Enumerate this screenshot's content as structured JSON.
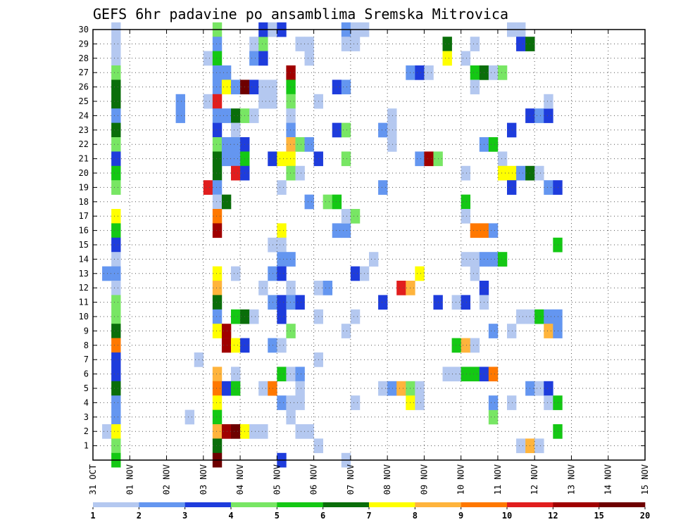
{
  "chart_data": {
    "type": "heatmap",
    "title": "GEFS 6hr padavine po ansamblima Sremska Mitrovica",
    "xlabel": "",
    "ylabel": "",
    "x_tick_labels": [
      "31 OCT",
      "01 NOV",
      "02 NOV",
      "03 NOV",
      "04 NOV",
      "05 NOV",
      "06 NOV",
      "07 NOV",
      "08 NOV",
      "09 NOV",
      "10 NOV",
      "11 NOV",
      "12 NOV",
      "13 NOV",
      "14 NOV",
      "15 NOV"
    ],
    "y_tick_labels": [
      "1",
      "2",
      "3",
      "4",
      "5",
      "6",
      "7",
      "8",
      "9",
      "10",
      "11",
      "12",
      "13",
      "14",
      "15",
      "16",
      "17",
      "18",
      "19",
      "20",
      "21",
      "22",
      "23",
      "24",
      "25",
      "26",
      "27",
      "28",
      "29",
      "30"
    ],
    "ylim": [
      0,
      30
    ],
    "x_steps_per_day": 4,
    "colorbar": {
      "levels": [
        1,
        2,
        3,
        4,
        5,
        6,
        7,
        8,
        9,
        10,
        12,
        15,
        20
      ],
      "label_levels": [
        "1",
        "2",
        "3",
        "4",
        "5",
        "6",
        "7",
        "8",
        "9",
        "10",
        "12",
        "15",
        "20"
      ],
      "colors": [
        "#b4c8f0",
        "#6496f0",
        "#1e3cdc",
        "#78e664",
        "#14c814",
        "#0a6e0a",
        "#ffff00",
        "#ffb43c",
        "#ff7800",
        "#e11e1e",
        "#a00000",
        "#6e0000"
      ]
    },
    "cells": [
      [
        2,
        30,
        0
      ],
      [
        2,
        29,
        0
      ],
      [
        2,
        28,
        0
      ],
      [
        2,
        27,
        3
      ],
      [
        2,
        26,
        5
      ],
      [
        2,
        25,
        5
      ],
      [
        2,
        24,
        1
      ],
      [
        2,
        23,
        5
      ],
      [
        2,
        22,
        3
      ],
      [
        2,
        21,
        2
      ],
      [
        2,
        20,
        4
      ],
      [
        2,
        19,
        3
      ],
      [
        2,
        17,
        6
      ],
      [
        2,
        16,
        4
      ],
      [
        2,
        15,
        2
      ],
      [
        2,
        14,
        0
      ],
      [
        1,
        13,
        1
      ],
      [
        2,
        13,
        1
      ],
      [
        2,
        12,
        0
      ],
      [
        2,
        11,
        3
      ],
      [
        2,
        10,
        3
      ],
      [
        2,
        9,
        5
      ],
      [
        2,
        8,
        8
      ],
      [
        2,
        7,
        2
      ],
      [
        2,
        6,
        2
      ],
      [
        2,
        5,
        5
      ],
      [
        2,
        4,
        1
      ],
      [
        2,
        3,
        1
      ],
      [
        1,
        2,
        0
      ],
      [
        2,
        2,
        6
      ],
      [
        2,
        1,
        3
      ],
      [
        2,
        0,
        4
      ],
      [
        9,
        24,
        1
      ],
      [
        9,
        25,
        1
      ],
      [
        10,
        3,
        0
      ],
      [
        12,
        28,
        0
      ],
      [
        12,
        25,
        0
      ],
      [
        12,
        19,
        9
      ],
      [
        11,
        7,
        0
      ],
      [
        13,
        30,
        3
      ],
      [
        13,
        29,
        1
      ],
      [
        13,
        28,
        4
      ],
      [
        13,
        27,
        1
      ],
      [
        14,
        27,
        1
      ],
      [
        13,
        26,
        1
      ],
      [
        14,
        26,
        6
      ],
      [
        13,
        25,
        9
      ],
      [
        13,
        24,
        1
      ],
      [
        13,
        23,
        2
      ],
      [
        13,
        22,
        3
      ],
      [
        14,
        22,
        1
      ],
      [
        13,
        21,
        5
      ],
      [
        14,
        21,
        1
      ],
      [
        13,
        20,
        5
      ],
      [
        13,
        19,
        1
      ],
      [
        13,
        18,
        0
      ],
      [
        14,
        18,
        5
      ],
      [
        13,
        17,
        8
      ],
      [
        13,
        16,
        10
      ],
      [
        13,
        13,
        6
      ],
      [
        13,
        12,
        7
      ],
      [
        13,
        11,
        5
      ],
      [
        13,
        10,
        1
      ],
      [
        13,
        9,
        6
      ],
      [
        14,
        9,
        10
      ],
      [
        14,
        8,
        10
      ],
      [
        13,
        6,
        7
      ],
      [
        13,
        5,
        8
      ],
      [
        14,
        5,
        2
      ],
      [
        13,
        4,
        6
      ],
      [
        13,
        3,
        4
      ],
      [
        13,
        2,
        7
      ],
      [
        14,
        2,
        10
      ],
      [
        13,
        1,
        5
      ],
      [
        13,
        0,
        11
      ],
      [
        14,
        24,
        1
      ],
      [
        15,
        24,
        5
      ],
      [
        16,
        24,
        3
      ],
      [
        17,
        24,
        0
      ],
      [
        15,
        26,
        1
      ],
      [
        16,
        26,
        11
      ],
      [
        17,
        26,
        2
      ],
      [
        18,
        26,
        0
      ],
      [
        19,
        26,
        0
      ],
      [
        15,
        23,
        0
      ],
      [
        15,
        22,
        1
      ],
      [
        16,
        22,
        2
      ],
      [
        15,
        21,
        1
      ],
      [
        16,
        21,
        4
      ],
      [
        15,
        20,
        9
      ],
      [
        16,
        20,
        2
      ],
      [
        15,
        13,
        0
      ],
      [
        15,
        10,
        4
      ],
      [
        16,
        10,
        5
      ],
      [
        17,
        10,
        0
      ],
      [
        15,
        8,
        6
      ],
      [
        16,
        8,
        2
      ],
      [
        15,
        6,
        0
      ],
      [
        15,
        5,
        4
      ],
      [
        15,
        2,
        11
      ],
      [
        16,
        2,
        6
      ],
      [
        17,
        2,
        0
      ],
      [
        18,
        2,
        0
      ],
      [
        18,
        25,
        0
      ],
      [
        19,
        25,
        0
      ],
      [
        17,
        29,
        0
      ],
      [
        18,
        29,
        3
      ],
      [
        17,
        28,
        1
      ],
      [
        18,
        28,
        2
      ],
      [
        18,
        30,
        2
      ],
      [
        19,
        30,
        0
      ],
      [
        19,
        21,
        2
      ],
      [
        20,
        21,
        6
      ],
      [
        20,
        19,
        0
      ],
      [
        20,
        16,
        6
      ],
      [
        19,
        15,
        0
      ],
      [
        20,
        15,
        0
      ],
      [
        20,
        14,
        1
      ],
      [
        19,
        13,
        1
      ],
      [
        20,
        13,
        2
      ],
      [
        18,
        12,
        0
      ],
      [
        19,
        11,
        1
      ],
      [
        20,
        11,
        2
      ],
      [
        20,
        10,
        2
      ],
      [
        19,
        8,
        1
      ],
      [
        20,
        8,
        0
      ],
      [
        18,
        5,
        0
      ],
      [
        19,
        5,
        8
      ],
      [
        20,
        4,
        1
      ],
      [
        21,
        4,
        0
      ],
      [
        20,
        6,
        4
      ],
      [
        20,
        0,
        2
      ],
      [
        21,
        27,
        10
      ],
      [
        21,
        26,
        4
      ],
      [
        21,
        25,
        3
      ],
      [
        21,
        24,
        0
      ],
      [
        21,
        23,
        1
      ],
      [
        21,
        22,
        7
      ],
      [
        22,
        22,
        3
      ],
      [
        23,
        22,
        1
      ],
      [
        21,
        21,
        6
      ],
      [
        21,
        20,
        3
      ],
      [
        22,
        20,
        0
      ],
      [
        21,
        14,
        1
      ],
      [
        21,
        12,
        0
      ],
      [
        21,
        11,
        1
      ],
      [
        22,
        11,
        2
      ],
      [
        21,
        9,
        3
      ],
      [
        21,
        6,
        0
      ],
      [
        22,
        2,
        0
      ],
      [
        23,
        2,
        0
      ],
      [
        22,
        6,
        1
      ],
      [
        22,
        5,
        0
      ],
      [
        22,
        4,
        0
      ],
      [
        21,
        3,
        0
      ],
      [
        22,
        29,
        0
      ],
      [
        23,
        29,
        0
      ],
      [
        23,
        28,
        0
      ],
      [
        20,
        30,
        2
      ],
      [
        24,
        25,
        0
      ],
      [
        24,
        21,
        2
      ],
      [
        23,
        18,
        1
      ],
      [
        24,
        12,
        0
      ],
      [
        25,
        12,
        1
      ],
      [
        24,
        7,
        0
      ],
      [
        24,
        1,
        0
      ],
      [
        24,
        10,
        0
      ],
      [
        26,
        26,
        2
      ],
      [
        27,
        26,
        1
      ],
      [
        26,
        23,
        2
      ],
      [
        27,
        23,
        3
      ],
      [
        27,
        21,
        3
      ],
      [
        25,
        18,
        3
      ],
      [
        26,
        18,
        4
      ],
      [
        26,
        16,
        1
      ],
      [
        27,
        16,
        1
      ],
      [
        27,
        17,
        0
      ],
      [
        28,
        17,
        3
      ],
      [
        27,
        30,
        1
      ],
      [
        28,
        30,
        0
      ],
      [
        29,
        30,
        0
      ],
      [
        27,
        29,
        0
      ],
      [
        28,
        29,
        0
      ],
      [
        28,
        13,
        2
      ],
      [
        29,
        13,
        0
      ],
      [
        27,
        9,
        0
      ],
      [
        28,
        4,
        0
      ],
      [
        27,
        0,
        0
      ],
      [
        28,
        10,
        0
      ],
      [
        31,
        23,
        1
      ],
      [
        32,
        23,
        0
      ],
      [
        31,
        19,
        1
      ],
      [
        30,
        14,
        0
      ],
      [
        31,
        11,
        2
      ],
      [
        31,
        5,
        0
      ],
      [
        32,
        5,
        1
      ],
      [
        33,
        5,
        7
      ],
      [
        34,
        5,
        3
      ],
      [
        35,
        5,
        0
      ],
      [
        34,
        4,
        6
      ],
      [
        35,
        4,
        0
      ],
      [
        33,
        12,
        9
      ],
      [
        34,
        12,
        7
      ],
      [
        32,
        24,
        0
      ],
      [
        32,
        22,
        0
      ],
      [
        34,
        27,
        1
      ],
      [
        35,
        27,
        2
      ],
      [
        36,
        27,
        0
      ],
      [
        35,
        21,
        1
      ],
      [
        36,
        21,
        10
      ],
      [
        37,
        21,
        3
      ],
      [
        38,
        29,
        5
      ],
      [
        38,
        28,
        6
      ],
      [
        35,
        13,
        6
      ],
      [
        37,
        11,
        2
      ],
      [
        39,
        11,
        0
      ],
      [
        40,
        11,
        2
      ],
      [
        39,
        8,
        4
      ],
      [
        40,
        8,
        7
      ],
      [
        41,
        8,
        0
      ],
      [
        38,
        6,
        0
      ],
      [
        39,
        6,
        0
      ],
      [
        40,
        6,
        4
      ],
      [
        41,
        6,
        4
      ],
      [
        42,
        6,
        2
      ],
      [
        43,
        6,
        8
      ],
      [
        40,
        18,
        4
      ],
      [
        40,
        17,
        0
      ],
      [
        41,
        16,
        8
      ],
      [
        42,
        16,
        8
      ],
      [
        43,
        16,
        1
      ],
      [
        40,
        14,
        0
      ],
      [
        41,
        14,
        0
      ],
      [
        42,
        14,
        1
      ],
      [
        43,
        14,
        1
      ],
      [
        44,
        14,
        4
      ],
      [
        41,
        13,
        0
      ],
      [
        42,
        12,
        2
      ],
      [
        42,
        11,
        0
      ],
      [
        40,
        20,
        0
      ],
      [
        40,
        28,
        0
      ],
      [
        41,
        29,
        0
      ],
      [
        42,
        22,
        1
      ],
      [
        43,
        22,
        4
      ],
      [
        41,
        27,
        4
      ],
      [
        42,
        27,
        5
      ],
      [
        43,
        27,
        0
      ],
      [
        44,
        27,
        3
      ],
      [
        41,
        26,
        0
      ],
      [
        43,
        3,
        3
      ],
      [
        43,
        4,
        1
      ],
      [
        45,
        4,
        0
      ],
      [
        43,
        9,
        1
      ],
      [
        45,
        9,
        0
      ],
      [
        46,
        10,
        0
      ],
      [
        47,
        10,
        0
      ],
      [
        46,
        1,
        0
      ],
      [
        47,
        1,
        7
      ],
      [
        48,
        1,
        0
      ],
      [
        45,
        30,
        0
      ],
      [
        46,
        30,
        0
      ],
      [
        46,
        29,
        2
      ],
      [
        47,
        29,
        5
      ],
      [
        45,
        23,
        2
      ],
      [
        44,
        21,
        0
      ],
      [
        44,
        20,
        6
      ],
      [
        45,
        20,
        6
      ],
      [
        46,
        20,
        1
      ],
      [
        47,
        20,
        5
      ],
      [
        48,
        20,
        0
      ],
      [
        45,
        19,
        2
      ],
      [
        49,
        19,
        1
      ],
      [
        50,
        19,
        2
      ],
      [
        47,
        24,
        2
      ],
      [
        48,
        24,
        1
      ],
      [
        49,
        24,
        2
      ],
      [
        49,
        25,
        0
      ],
      [
        48,
        10,
        4
      ],
      [
        49,
        10,
        1
      ],
      [
        50,
        10,
        1
      ],
      [
        49,
        9,
        7
      ],
      [
        50,
        9,
        1
      ],
      [
        47,
        5,
        1
      ],
      [
        48,
        5,
        0
      ],
      [
        49,
        5,
        2
      ],
      [
        49,
        4,
        0
      ],
      [
        50,
        4,
        4
      ],
      [
        50,
        2,
        4
      ],
      [
        50,
        15,
        4
      ]
    ]
  }
}
